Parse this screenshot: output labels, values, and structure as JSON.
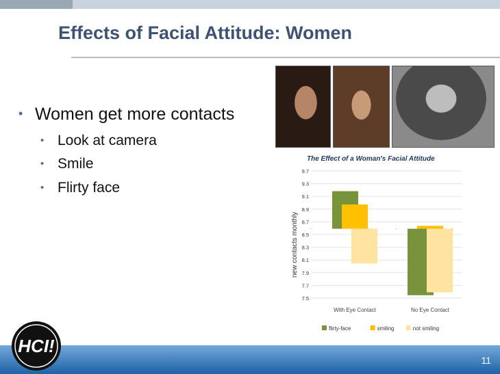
{
  "slide": {
    "title": "Effects of Facial Attitude: Women",
    "page_number": "11",
    "logo_text": "HCI!",
    "bullets": [
      "Women get more contacts",
      "Look at camera",
      "Smile",
      "Flirty face"
    ],
    "bullet_glyph": "•",
    "photos": [
      "woman-photo",
      "woman-photo",
      "woman-photo"
    ],
    "colors": {
      "title": "#3e5373",
      "footer": "#1f62a6",
      "bullet": "#4e6e95"
    }
  },
  "chart_data": {
    "type": "bar",
    "title": "The Effect of a Woman's Facial Attitude",
    "ylabel": "new contacts monthly",
    "xlabel": "",
    "categories": [
      "With Eye Contact",
      "No Eye Contact"
    ],
    "baseline": 8.7,
    "ylim": [
      7.5,
      9.7
    ],
    "yticks": [
      "9.7",
      "9.3",
      "9.1",
      "8.9",
      "8.7",
      "8.5",
      "8.3",
      "8.1",
      "7.9",
      "7.7",
      "7.5"
    ],
    "series": [
      {
        "name": "flirty-face",
        "color": "#77933c",
        "values": [
          9.35,
          7.55
        ]
      },
      {
        "name": "smiling",
        "color": "#ffc000",
        "values": [
          9.12,
          8.75
        ]
      },
      {
        "name": "not smiling",
        "color": "#ffe4a1",
        "values": [
          8.1,
          7.6
        ]
      }
    ],
    "legend_position": "bottom",
    "grid": true
  }
}
